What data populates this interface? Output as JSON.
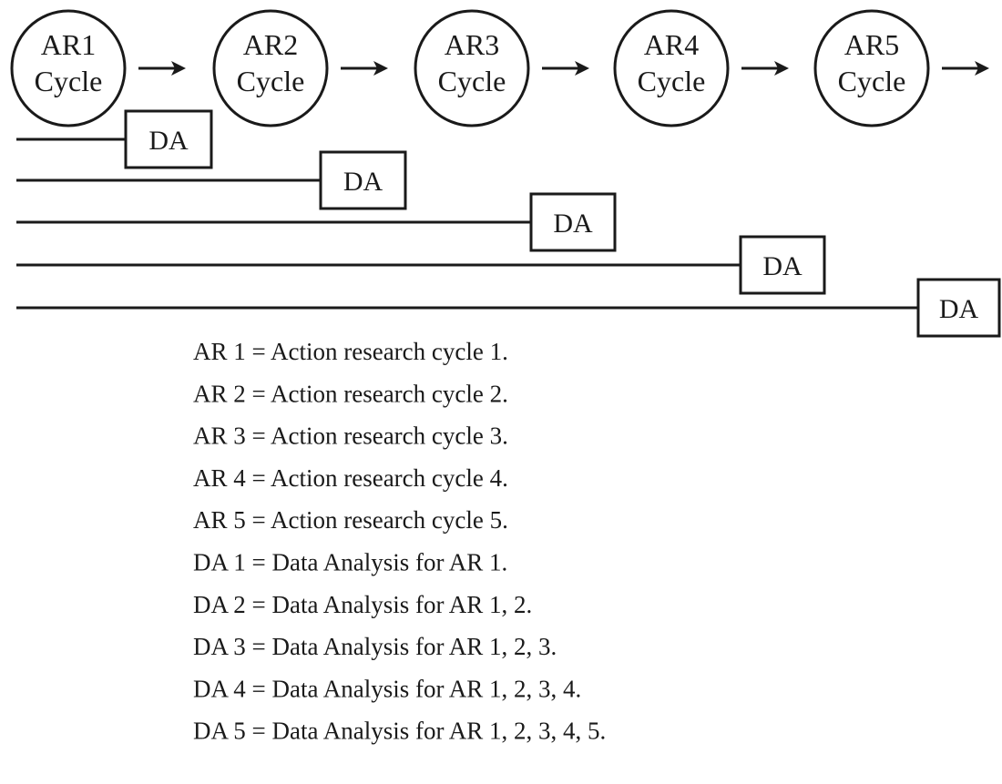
{
  "nodes": [
    {
      "line1": "AR1",
      "line2": "Cycle"
    },
    {
      "line1": "AR2",
      "line2": "Cycle"
    },
    {
      "line1": "AR3",
      "line2": "Cycle"
    },
    {
      "line1": "AR4",
      "line2": "Cycle"
    },
    {
      "line1": "AR5",
      "line2": "Cycle"
    }
  ],
  "analyses": [
    {
      "label": "DA"
    },
    {
      "label": "DA"
    },
    {
      "label": "DA"
    },
    {
      "label": "DA"
    },
    {
      "label": "DA"
    }
  ],
  "legend": [
    "AR 1 = Action research cycle 1.",
    "AR 2 = Action research cycle 2.",
    "AR 3 = Action research cycle 3.",
    "AR 4 = Action research cycle 4.",
    "AR 5 = Action research cycle 5.",
    "DA 1 = Data Analysis for AR 1.",
    "DA 2 = Data Analysis for AR 1, 2.",
    "DA 3 = Data Analysis for AR 1, 2, 3.",
    "DA 4 = Data Analysis for AR 1, 2, 3, 4.",
    "DA 5 = Data Analysis for AR 1, 2, 3, 4, 5."
  ]
}
